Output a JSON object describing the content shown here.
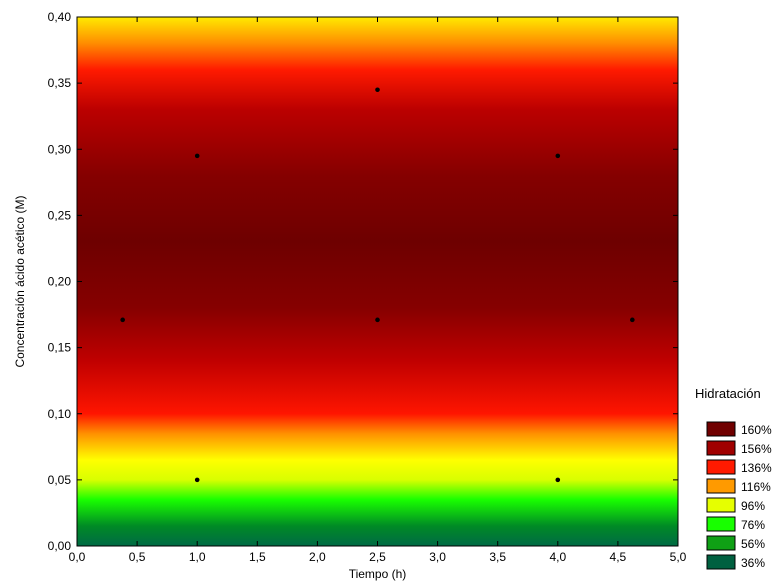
{
  "chart_data": {
    "type": "heatmap",
    "title": "",
    "xlabel": "Tiempo (h)",
    "ylabel": "Concentración ácido acético (M)",
    "xlim": [
      0,
      5
    ],
    "ylim": [
      0,
      0.4
    ],
    "x_ticks": [
      "0,0",
      "0,5",
      "1,0",
      "1,5",
      "2,0",
      "2,5",
      "3,0",
      "3,5",
      "4,0",
      "4,5",
      "5,0"
    ],
    "y_ticks": [
      "0,00",
      "0,05",
      "0,10",
      "0,15",
      "0,20",
      "0,25",
      "0,30",
      "0,35",
      "0,40"
    ],
    "design_points": [
      {
        "x": 0.38,
        "y": 0.171
      },
      {
        "x": 1.0,
        "y": 0.05
      },
      {
        "x": 1.0,
        "y": 0.295
      },
      {
        "x": 2.5,
        "y": 0.171
      },
      {
        "x": 2.5,
        "y": 0.345
      },
      {
        "x": 4.0,
        "y": 0.05
      },
      {
        "x": 4.0,
        "y": 0.295
      },
      {
        "x": 4.62,
        "y": 0.171
      }
    ],
    "legend": {
      "title": "Hidratación",
      "placement": "right",
      "items": [
        {
          "label": "160%",
          "color": "#700000"
        },
        {
          "label": "156%",
          "color": "#a00000"
        },
        {
          "label": "136%",
          "color": "#ff1a00"
        },
        {
          "label": "116%",
          "color": "#ff9a00"
        },
        {
          "label": "96%",
          "color": "#e6ff00"
        },
        {
          "label": "76%",
          "color": "#18ff00"
        },
        {
          "label": "56%",
          "color": "#0fa015"
        },
        {
          "label": "36%",
          "color": "#006040"
        }
      ]
    },
    "surface_gradient": [
      {
        "y": 0.0,
        "color": "#006a45"
      },
      {
        "y": 0.015,
        "color": "#008a25"
      },
      {
        "y": 0.035,
        "color": "#19ff00"
      },
      {
        "y": 0.05,
        "color": "#d8ff00"
      },
      {
        "y": 0.065,
        "color": "#ffff00"
      },
      {
        "y": 0.085,
        "color": "#ff9000"
      },
      {
        "y": 0.1,
        "color": "#ff1500"
      },
      {
        "y": 0.14,
        "color": "#c00000"
      },
      {
        "y": 0.18,
        "color": "#860000"
      },
      {
        "y": 0.23,
        "color": "#6e0000"
      },
      {
        "y": 0.28,
        "color": "#850000"
      },
      {
        "y": 0.33,
        "color": "#bb0000"
      },
      {
        "y": 0.36,
        "color": "#ff1a00"
      },
      {
        "y": 0.38,
        "color": "#ff8c00"
      },
      {
        "y": 0.4,
        "color": "#ffea00"
      }
    ]
  }
}
